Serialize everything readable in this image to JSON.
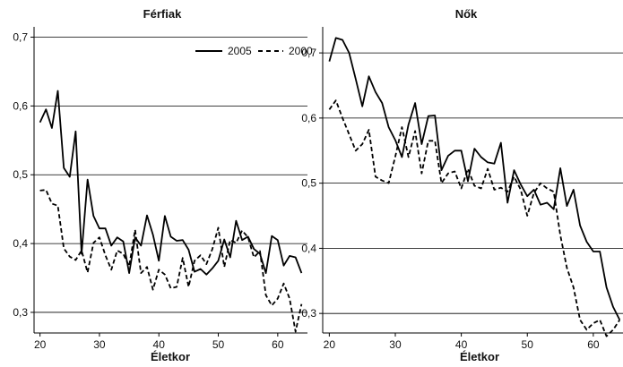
{
  "chart_data": [
    {
      "type": "line",
      "title": "Férfiak",
      "xlabel": "Életkor",
      "ylabel": "",
      "xlim": [
        19,
        65
      ],
      "ylim": [
        0.27,
        0.715
      ],
      "xticks": [
        20,
        30,
        40,
        50,
        60
      ],
      "xtick_labels": [
        "20",
        "30",
        "40",
        "50",
        "60"
      ],
      "yticks": [
        0.3,
        0.4,
        0.5,
        0.6,
        0.7
      ],
      "ytick_labels": [
        "0,3",
        "0,4",
        "0,5",
        "0,6",
        "0,7"
      ],
      "grid": "horizontal",
      "legend": "top-right",
      "x": [
        20,
        21,
        22,
        23,
        24,
        25,
        26,
        27,
        28,
        29,
        30,
        31,
        32,
        33,
        34,
        35,
        36,
        37,
        38,
        39,
        40,
        41,
        42,
        43,
        44,
        45,
        46,
        47,
        48,
        49,
        50,
        51,
        52,
        53,
        54,
        55,
        56,
        57,
        58,
        59,
        60,
        61,
        62,
        63,
        64
      ],
      "series": [
        {
          "name": "2005",
          "style": "solid",
          "values": [
            0.576,
            0.595,
            0.568,
            0.622,
            0.51,
            0.497,
            0.563,
            0.385,
            0.493,
            0.44,
            0.422,
            0.422,
            0.397,
            0.409,
            0.403,
            0.357,
            0.409,
            0.397,
            0.441,
            0.413,
            0.375,
            0.44,
            0.41,
            0.404,
            0.405,
            0.391,
            0.359,
            0.363,
            0.355,
            0.364,
            0.375,
            0.406,
            0.38,
            0.433,
            0.405,
            0.41,
            0.392,
            0.385,
            0.357,
            0.411,
            0.405,
            0.368,
            0.382,
            0.38,
            0.357
          ]
        },
        {
          "name": "2000",
          "style": "dashed",
          "values": [
            0.477,
            0.478,
            0.458,
            0.455,
            0.393,
            0.381,
            0.376,
            0.39,
            0.358,
            0.401,
            0.409,
            0.383,
            0.362,
            0.39,
            0.385,
            0.367,
            0.42,
            0.357,
            0.366,
            0.333,
            0.362,
            0.355,
            0.335,
            0.337,
            0.379,
            0.337,
            0.375,
            0.383,
            0.37,
            0.392,
            0.423,
            0.366,
            0.405,
            0.401,
            0.419,
            0.409,
            0.38,
            0.389,
            0.325,
            0.31,
            0.32,
            0.342,
            0.32,
            0.272,
            0.312
          ]
        }
      ]
    },
    {
      "type": "line",
      "title": "Nők",
      "xlabel": "Életkor",
      "ylabel": "",
      "xlim": [
        19,
        64.5
      ],
      "ylim": [
        0.27,
        0.74
      ],
      "xticks": [
        20,
        30,
        40,
        50,
        60
      ],
      "xtick_labels": [
        "20",
        "30",
        "40",
        "50",
        "60"
      ],
      "yticks": [
        0.3,
        0.4,
        0.5,
        0.6,
        0.7
      ],
      "ytick_labels": [
        "0,3",
        "0,4",
        "0,5",
        "0,6",
        "0,7"
      ],
      "grid": "horizontal",
      "legend": "none",
      "x": [
        20,
        21,
        22,
        23,
        24,
        25,
        26,
        27,
        28,
        29,
        30,
        31,
        32,
        33,
        34,
        35,
        36,
        37,
        38,
        39,
        40,
        41,
        42,
        43,
        44,
        45,
        46,
        47,
        48,
        49,
        50,
        51,
        52,
        53,
        54,
        55,
        56,
        57,
        58,
        59,
        60,
        61,
        62,
        63,
        64
      ],
      "series": [
        {
          "name": "2005",
          "style": "solid",
          "values": [
            0.687,
            0.723,
            0.72,
            0.7,
            0.66,
            0.618,
            0.664,
            0.64,
            0.623,
            0.586,
            0.566,
            0.54,
            0.59,
            0.623,
            0.56,
            0.603,
            0.604,
            0.52,
            0.542,
            0.55,
            0.55,
            0.503,
            0.553,
            0.54,
            0.532,
            0.53,
            0.562,
            0.47,
            0.52,
            0.498,
            0.48,
            0.49,
            0.467,
            0.47,
            0.46,
            0.523,
            0.465,
            0.49,
            0.435,
            0.41,
            0.395,
            0.395,
            0.34,
            0.31,
            0.29
          ]
        },
        {
          "name": "2000",
          "style": "dashed",
          "values": [
            0.613,
            0.627,
            0.6,
            0.575,
            0.55,
            0.56,
            0.582,
            0.51,
            0.504,
            0.5,
            0.541,
            0.586,
            0.54,
            0.58,
            0.515,
            0.565,
            0.565,
            0.5,
            0.515,
            0.518,
            0.492,
            0.522,
            0.496,
            0.492,
            0.522,
            0.49,
            0.493,
            0.487,
            0.51,
            0.49,
            0.45,
            0.485,
            0.5,
            0.492,
            0.487,
            0.42,
            0.37,
            0.34,
            0.29,
            0.275,
            0.285,
            0.29,
            0.265,
            0.275,
            0.29
          ]
        }
      ]
    }
  ]
}
